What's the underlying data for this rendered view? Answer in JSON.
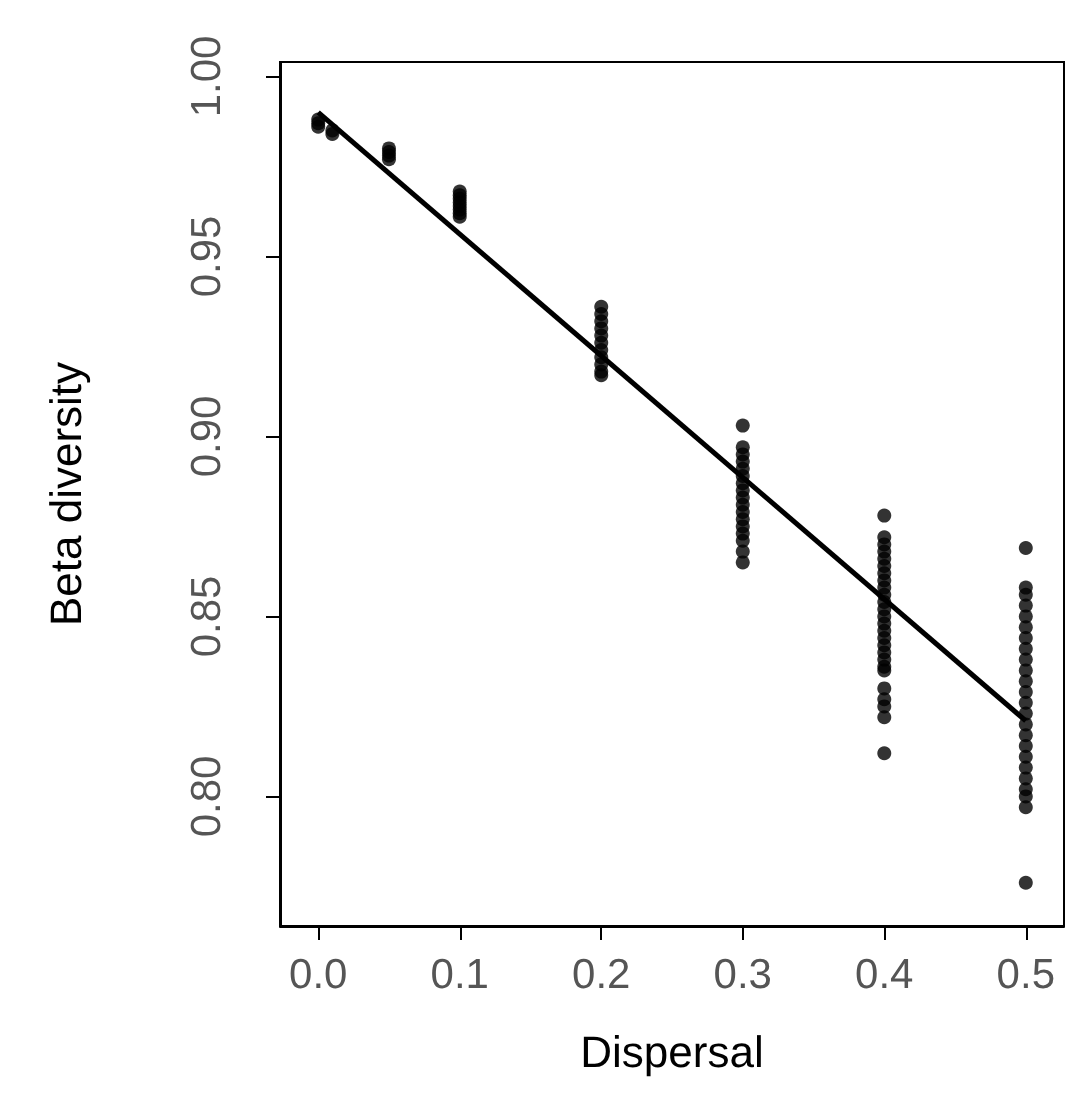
{
  "chart_data": {
    "type": "scatter",
    "xlabel": "Dispersal",
    "ylabel": "Beta diversity",
    "xlim": [
      -0.027,
      0.527
    ],
    "xticks": [
      {
        "value": 0,
        "label": "0.0"
      },
      0.1,
      0.2,
      0.3,
      0.4,
      0.5
    ],
    "ylim": [
      0.764,
      1.004
    ],
    "yticks": [
      {
        "value": 0.8,
        "label": "0.80"
      },
      0.85,
      {
        "value": 0.9,
        "label": "0.90"
      },
      0.95,
      {
        "value": 1,
        "label": "1.00"
      }
    ],
    "grid": false,
    "marker": "circle",
    "series": [
      {
        "color": "#000000",
        "x": [
          0,
          0,
          0,
          0.01,
          0.01,
          0.05,
          0.05,
          0.05,
          0.05,
          0.1,
          0.1,
          0.1,
          0.1,
          0.1,
          0.1,
          0.1,
          0.1,
          0.2,
          0.2,
          0.2,
          0.2,
          0.2,
          0.2,
          0.2,
          0.2,
          0.2,
          0.2,
          0.2,
          0.3,
          0.3,
          0.3,
          0.3,
          0.3,
          0.3,
          0.3,
          0.3,
          0.3,
          0.3,
          0.3,
          0.3,
          0.3,
          0.3,
          0.3,
          0.3,
          0.3,
          0.4,
          0.4,
          0.4,
          0.4,
          0.4,
          0.4,
          0.4,
          0.4,
          0.4,
          0.4,
          0.4,
          0.4,
          0.4,
          0.4,
          0.4,
          0.4,
          0.4,
          0.4,
          0.4,
          0.4,
          0.4,
          0.4,
          0.4,
          0.4,
          0.4,
          0.4,
          0.5,
          0.5,
          0.5,
          0.5,
          0.5,
          0.5,
          0.5,
          0.5,
          0.5,
          0.5,
          0.5,
          0.5,
          0.5,
          0.5,
          0.5,
          0.5,
          0.5,
          0.5,
          0.5,
          0.5,
          0.5,
          0.5,
          0.5,
          0.5
        ],
        "values": [
          0.988,
          0.987,
          0.986,
          0.985,
          0.984,
          0.98,
          0.979,
          0.978,
          0.977,
          0.968,
          0.967,
          0.966,
          0.965,
          0.964,
          0.963,
          0.962,
          0.961,
          0.936,
          0.934,
          0.932,
          0.93,
          0.928,
          0.926,
          0.924,
          0.922,
          0.92,
          0.918,
          0.917,
          0.903,
          0.897,
          0.895,
          0.893,
          0.891,
          0.889,
          0.887,
          0.885,
          0.883,
          0.881,
          0.879,
          0.877,
          0.875,
          0.873,
          0.871,
          0.868,
          0.865,
          0.878,
          0.872,
          0.87,
          0.868,
          0.866,
          0.864,
          0.862,
          0.86,
          0.858,
          0.856,
          0.854,
          0.852,
          0.85,
          0.848,
          0.846,
          0.844,
          0.842,
          0.84,
          0.838,
          0.836,
          0.835,
          0.83,
          0.827,
          0.825,
          0.822,
          0.812,
          0.869,
          0.858,
          0.856,
          0.853,
          0.85,
          0.847,
          0.844,
          0.841,
          0.838,
          0.835,
          0.832,
          0.829,
          0.826,
          0.823,
          0.82,
          0.817,
          0.814,
          0.811,
          0.808,
          0.805,
          0.802,
          0.8,
          0.797,
          0.776
        ]
      },
      {
        "type": "line",
        "color": "#000000",
        "marker": "none",
        "x": [
          0,
          0.5
        ],
        "values": [
          0.99,
          0.821
        ]
      }
    ]
  }
}
